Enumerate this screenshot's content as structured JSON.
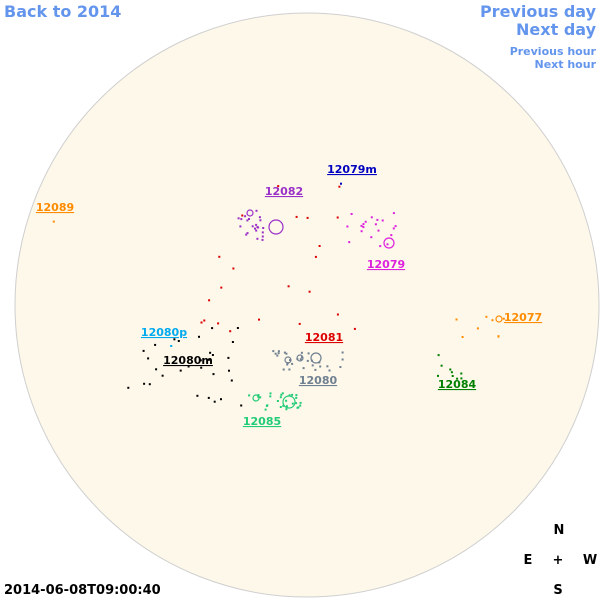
{
  "nav": {
    "back": "Back to 2014",
    "previous_day": "Previous day",
    "next_day": "Next day",
    "previous_hour": "Previous hour",
    "next_hour": "Next hour"
  },
  "regions": [
    {
      "label": "12079m",
      "color": "#0000c0"
    },
    {
      "label": "12082",
      "color": "#9b30c8"
    },
    {
      "label": "12089",
      "color": "#ff8c00"
    },
    {
      "label": "12079",
      "color": "#dd22dd"
    },
    {
      "label": "12077",
      "color": "#ff8c00"
    },
    {
      "label": "12080p",
      "color": "#00aaee"
    },
    {
      "label": "12081",
      "color": "#dd0000"
    },
    {
      "label": "12080m",
      "color": "#000000"
    },
    {
      "label": "12080",
      "color": "#708090"
    },
    {
      "label": "12084",
      "color": "#008000"
    },
    {
      "label": "12085",
      "color": "#22cc77"
    }
  ],
  "compass": {
    "n": "N",
    "e": "E",
    "center": "+",
    "w": "W",
    "s": "S"
  },
  "timestamp": "2014-06-08T09:00:40"
}
